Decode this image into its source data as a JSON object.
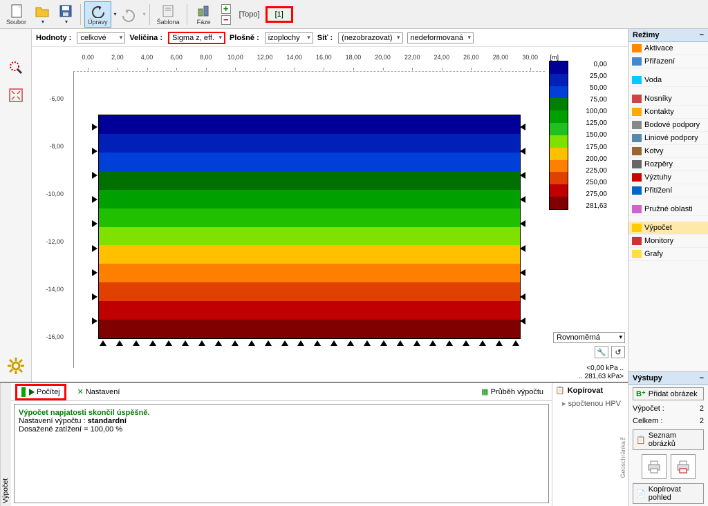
{
  "toolbar": {
    "soubor": "Soubor",
    "upravy": "Úpravy",
    "sablona": "Šablona",
    "faze": "Fáze",
    "topo": "[Topo]",
    "phase1": "[1]"
  },
  "controls": {
    "hodnoty_lbl": "Hodnoty :",
    "hodnoty_val": "celkové",
    "velicina_lbl": "Veličina :",
    "velicina_val": "Sigma z, eff.",
    "plosne_lbl": "Plošně :",
    "plosne_val": "izoplochy",
    "sit_lbl": "Síť :",
    "sit_val": "(nezobrazovat)",
    "def_val": "nedeformovaná"
  },
  "ruler_x": [
    "0,00",
    "2,00",
    "4,00",
    "6,00",
    "8,00",
    "10,00",
    "12,00",
    "14,00",
    "16,00",
    "18,00",
    "20,00",
    "22,00",
    "24,00",
    "26,00",
    "28,00",
    "30,00"
  ],
  "ruler_x_unit": "[m]",
  "ruler_y": [
    "-16,00",
    "-14,00",
    "-12,00",
    "-10,00",
    "-8,00",
    "-6,00"
  ],
  "bands": [
    "#000099",
    "#0020b8",
    "#0040d8",
    "#007000",
    "#00a000",
    "#20c000",
    "#80e000",
    "#ffc000",
    "#ff8000",
    "#e04000",
    "#c00000",
    "#800000"
  ],
  "legend": {
    "colors": [
      "#000099",
      "#0020b8",
      "#0040d8",
      "#008000",
      "#00a000",
      "#20c020",
      "#80e000",
      "#ffc000",
      "#ff8000",
      "#e04000",
      "#c00000",
      "#800000"
    ],
    "values": [
      "0,00",
      "25,00",
      "50,00",
      "75,00",
      "100,00",
      "125,00",
      "150,00",
      "175,00",
      "200,00",
      "225,00",
      "250,00",
      "275,00",
      "281,63"
    ]
  },
  "scale": {
    "type": "Rovnoměrná",
    "p1": "<0,00 kPa ..",
    "p2": ".. 281,63 kPa>"
  },
  "modes": {
    "header": "Režimy",
    "items": [
      {
        "label": "Aktivace",
        "color": "#ff8800"
      },
      {
        "label": "Přiřazení",
        "color": "#4488cc"
      },
      {
        "label": "Voda",
        "color": "#00ccff"
      },
      {
        "label": "Nosníky",
        "color": "#cc4444"
      },
      {
        "label": "Kontakty",
        "color": "#ffaa00"
      },
      {
        "label": "Bodové podpory",
        "color": "#888888"
      },
      {
        "label": "Liniové podpory",
        "color": "#5588aa"
      },
      {
        "label": "Kotvy",
        "color": "#996633"
      },
      {
        "label": "Rozpěry",
        "color": "#666666"
      },
      {
        "label": "Výztuhy",
        "color": "#cc0000"
      },
      {
        "label": "Přitížení",
        "color": "#0066cc"
      },
      {
        "label": "Pružné oblasti",
        "color": "#cc66cc"
      },
      {
        "label": "Výpočet",
        "color": "#ffcc00",
        "selected": true
      },
      {
        "label": "Monitory",
        "color": "#cc3333"
      },
      {
        "label": "Grafy",
        "color": "#ffdd44"
      }
    ]
  },
  "bottom": {
    "sidelabel": "Výpočet",
    "pocitej": "Počítej",
    "nastaveni": "Nastavení",
    "prubeh": "Průběh výpočtu",
    "log_ok": "Výpočet napjatosti skončil úspěšně.",
    "log_l1a": "Nastavení výpočtu : ",
    "log_l1b": "standardní",
    "log_l2": "Dosažené zatížení = 100,00 %",
    "geo": "Geoschránka™",
    "kopirovat": "Kopírovat",
    "spoctenou": "spočtenou HPV"
  },
  "vystupy": {
    "header": "Výstupy",
    "pridat": "Přidat obrázek",
    "vypocet_lbl": "Výpočet :",
    "vypocet_n": "2",
    "celkem_lbl": "Celkem :",
    "celkem_n": "2",
    "seznam": "Seznam obrázků",
    "kopirovat": "Kopírovat pohled"
  }
}
